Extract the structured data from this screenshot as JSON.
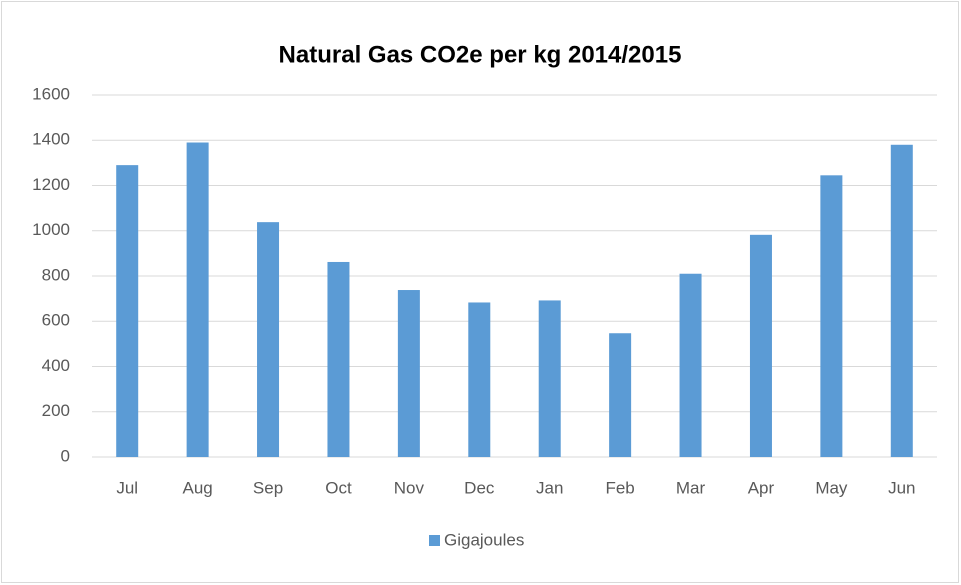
{
  "chart_data": {
    "type": "bar",
    "title": "Natural Gas CO2e per kg 2014/2015",
    "categories": [
      "Jul",
      "Aug",
      "Sep",
      "Oct",
      "Nov",
      "Dec",
      "Jan",
      "Feb",
      "Mar",
      "Apr",
      "May",
      "Jun"
    ],
    "series": [
      {
        "name": "Gigajoules",
        "color": "#5b9bd5",
        "values": [
          1290,
          1390,
          1038,
          862,
          738,
          683,
          692,
          547,
          810,
          982,
          1245,
          1380
        ]
      }
    ],
    "ylim": [
      0,
      1600
    ],
    "yticks": [
      0,
      200,
      400,
      600,
      800,
      1000,
      1200,
      1400,
      1600
    ],
    "grid": true,
    "legend": "bottom"
  }
}
